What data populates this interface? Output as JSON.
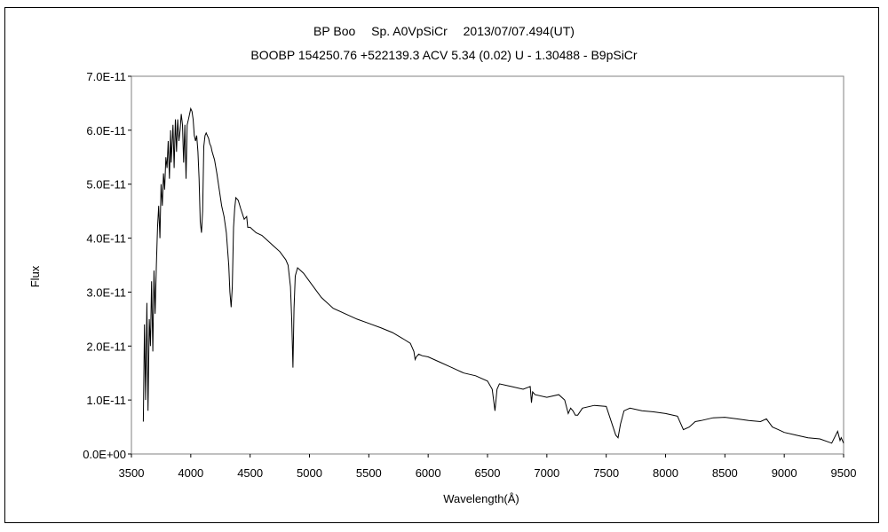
{
  "chart_data": {
    "type": "line",
    "title": "BP Boo　 Sp. A0VpSiCr　 2013/07/07.494(UT)",
    "subtitle": "BOOBP 154250.76 +522139.3 ACV 5.34 (0.02) U - 1.30488 - B9pSiCr",
    "xlabel": "Wavelength(Å)",
    "ylabel": "Flux",
    "xlim": [
      3500,
      9500
    ],
    "ylim": [
      0,
      7e-11
    ],
    "grid": false,
    "legend": "none",
    "x_ticks": [
      "3500",
      "4000",
      "4500",
      "5000",
      "5500",
      "6000",
      "6500",
      "7000",
      "7500",
      "8000",
      "8500",
      "9000",
      "9500"
    ],
    "y_ticks": [
      "0.0E+00",
      "1.0E-11",
      "2.0E-11",
      "3.0E-11",
      "4.0E-11",
      "5.0E-11",
      "6.0E-11",
      "7.0E-11"
    ],
    "line_color": "#000000",
    "series": [
      {
        "name": "",
        "x": [
          3600,
          3610,
          3620,
          3630,
          3640,
          3650,
          3660,
          3670,
          3680,
          3690,
          3700,
          3710,
          3720,
          3730,
          3740,
          3750,
          3760,
          3770,
          3780,
          3790,
          3800,
          3810,
          3820,
          3830,
          3835,
          3840,
          3850,
          3860,
          3870,
          3880,
          3890,
          3900,
          3910,
          3920,
          3930,
          3940,
          3950,
          3960,
          3970,
          3980,
          3990,
          4000,
          4010,
          4020,
          4030,
          4040,
          4050,
          4060,
          4070,
          4080,
          4090,
          4100,
          4110,
          4120,
          4130,
          4140,
          4150,
          4160,
          4170,
          4180,
          4200,
          4220,
          4240,
          4260,
          4280,
          4300,
          4320,
          4330,
          4340,
          4350,
          4360,
          4370,
          4380,
          4400,
          4420,
          4450,
          4471,
          4480,
          4500,
          4550,
          4600,
          4650,
          4700,
          4750,
          4800,
          4820,
          4840,
          4850,
          4861,
          4870,
          4880,
          4900,
          4950,
          5000,
          5050,
          5100,
          5200,
          5300,
          5400,
          5500,
          5600,
          5700,
          5800,
          5850,
          5880,
          5890,
          5900,
          5920,
          5950,
          6000,
          6100,
          6200,
          6250,
          6280,
          6300,
          6400,
          6500,
          6540,
          6563,
          6580,
          6600,
          6700,
          6800,
          6860,
          6870,
          6880,
          6900,
          7000,
          7100,
          7150,
          7180,
          7200,
          7220,
          7240,
          7260,
          7300,
          7400,
          7500,
          7580,
          7600,
          7620,
          7650,
          7700,
          7800,
          7900,
          8000,
          8100,
          8150,
          8200,
          8250,
          8300,
          8400,
          8500,
          8600,
          8700,
          8800,
          8850,
          8900,
          8950,
          9000,
          9100,
          9200,
          9300,
          9400,
          9450,
          9470,
          9480,
          9500
        ],
        "y": [
          0.6,
          2.4,
          1.0,
          2.8,
          0.8,
          2.5,
          2.0,
          3.2,
          1.9,
          3.4,
          2.6,
          3.5,
          4.2,
          4.6,
          4.0,
          5.0,
          4.6,
          5.2,
          4.9,
          5.5,
          5.3,
          5.8,
          5.1,
          6.0,
          5.4,
          5.6,
          6.1,
          5.3,
          6.2,
          5.6,
          6.2,
          5.8,
          6.0,
          6.3,
          6.1,
          5.4,
          6.1,
          5.1,
          6.1,
          6.2,
          6.3,
          6.4,
          6.35,
          6.2,
          5.9,
          5.8,
          5.9,
          5.6,
          5.1,
          4.3,
          4.1,
          4.5,
          5.7,
          5.9,
          5.95,
          5.9,
          5.85,
          5.75,
          5.7,
          5.6,
          5.45,
          5.2,
          4.9,
          4.6,
          4.4,
          4.1,
          3.5,
          3.0,
          2.72,
          3.1,
          4.2,
          4.55,
          4.75,
          4.7,
          4.55,
          4.35,
          4.4,
          4.2,
          4.2,
          4.1,
          4.05,
          3.95,
          3.85,
          3.75,
          3.6,
          3.5,
          3.1,
          2.5,
          1.6,
          2.7,
          3.3,
          3.45,
          3.35,
          3.2,
          3.05,
          2.9,
          2.7,
          2.6,
          2.5,
          2.42,
          2.34,
          2.25,
          2.12,
          2.05,
          1.9,
          1.75,
          1.8,
          1.85,
          1.82,
          1.8,
          1.7,
          1.6,
          1.55,
          1.52,
          1.5,
          1.45,
          1.35,
          1.2,
          0.8,
          1.2,
          1.3,
          1.25,
          1.2,
          1.25,
          0.95,
          1.15,
          1.1,
          1.05,
          1.1,
          1.0,
          0.75,
          0.85,
          0.8,
          0.72,
          0.72,
          0.85,
          0.9,
          0.88,
          0.35,
          0.3,
          0.55,
          0.8,
          0.85,
          0.8,
          0.78,
          0.75,
          0.7,
          0.45,
          0.5,
          0.6,
          0.62,
          0.67,
          0.68,
          0.65,
          0.62,
          0.6,
          0.65,
          0.5,
          0.45,
          0.4,
          0.35,
          0.3,
          0.28,
          0.2,
          0.42,
          0.25,
          0.3,
          0.2
        ]
      }
    ]
  }
}
